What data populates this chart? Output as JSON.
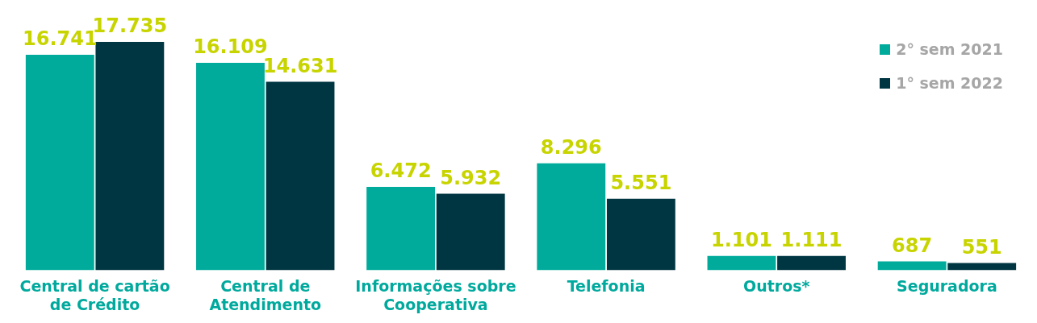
{
  "chart_data": {
    "type": "bar",
    "categories": [
      "Central de cartão de Crédito",
      "Central de Atendimento",
      "Informações sobre Cooperativa",
      "Telefonia",
      "Outros*",
      "Seguradora"
    ],
    "series": [
      {
        "name": "2° sem 2021",
        "color": "#00ab9c",
        "values": [
          16741,
          16109,
          6472,
          8296,
          1101,
          687
        ],
        "value_labels": [
          "16.741",
          "16.109",
          "6.472",
          "8.296",
          "1.101",
          "687"
        ]
      },
      {
        "name": "1° sem 2022",
        "color": "#003641",
        "values": [
          17735,
          14631,
          5932,
          5551,
          1111,
          551
        ],
        "value_labels": [
          "17.735",
          "14.631",
          "5.932",
          "5.551",
          "1.111",
          "551"
        ]
      }
    ],
    "relative": false,
    "legend": "top right",
    "grid": false
  }
}
